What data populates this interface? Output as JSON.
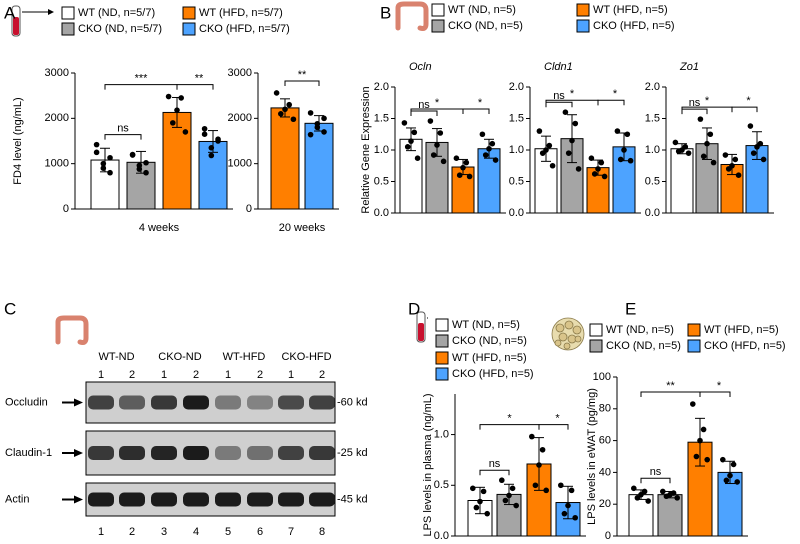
{
  "panels": [
    "A",
    "B",
    "C",
    "D",
    "E"
  ],
  "chart_data": [
    {
      "type": "bar",
      "ylabel": "FD4 level (ng/mL)",
      "xlabel": "4 weeks",
      "categories": [
        "WT (ND, n=5/7)",
        "CKO (ND, n=5/7)",
        "WT (HFD, n=5/7)",
        "CKO (HFD, n=5/7)"
      ],
      "colors": [
        "#ffffff",
        "#a5a5a5",
        "#ff7f00",
        "#4da3ff"
      ],
      "values": [
        1080,
        1030,
        2130,
        1490
      ],
      "errors": [
        260,
        240,
        330,
        240
      ],
      "points": [
        [
          1420,
          1130,
          1000,
          900,
          800,
          1250
        ],
        [
          1190,
          1020,
          960,
          880,
          800,
          1200
        ],
        [
          2480,
          2450,
          2180,
          1900,
          1700
        ],
        [
          1770,
          1540,
          1350,
          1180,
          1500,
          1650
        ]
      ],
      "annotations": [
        "ns",
        "***",
        "**"
      ],
      "ylim": [
        0,
        3000
      ],
      "yticks": [
        0,
        1000,
        2000,
        3000
      ]
    },
    {
      "type": "bar",
      "xlabel": "20 weeks",
      "colors": [
        "#ff7f00",
        "#4da3ff"
      ],
      "values": [
        2230,
        1890
      ],
      "errors": [
        200,
        170
      ],
      "points": [
        [
          2560,
          2300,
          2200,
          2100,
          1980
        ],
        [
          2120,
          2000,
          1880,
          1800,
          1700,
          1640
        ]
      ],
      "annotations": [
        "**"
      ],
      "ylim": [
        0,
        3000
      ],
      "yticks": [
        0,
        1000,
        2000,
        3000
      ]
    },
    {
      "type": "bar",
      "title": "Ocln",
      "ylabel": "Relative Gene Expression",
      "categories": [
        "WT (ND, n=5)",
        "CKO (ND, n=5)",
        "WT (HFD, n=5)",
        "CKO (HFD, n=5)"
      ],
      "colors": [
        "#ffffff",
        "#a5a5a5",
        "#ff7f00",
        "#4da3ff"
      ],
      "values": [
        1.17,
        1.12,
        0.73,
        1.02
      ],
      "errors": [
        0.18,
        0.22,
        0.12,
        0.15
      ],
      "points": [
        [
          1.43,
          1.28,
          1.14,
          1.05,
          0.87
        ],
        [
          1.46,
          1.27,
          1.08,
          0.92,
          0.82
        ],
        [
          0.87,
          0.8,
          0.72,
          0.6,
          0.58
        ],
        [
          1.25,
          1.1,
          1.02,
          0.92,
          0.84
        ]
      ],
      "annotations": [
        "ns",
        "*",
        "*"
      ],
      "ylim": [
        0,
        2.0
      ],
      "yticks": [
        {
          "value": 0,
          "label": "0.0"
        },
        {
          "value": 0.5,
          "label": "0.5"
        },
        {
          "value": 1.0,
          "label": "1.0"
        },
        {
          "value": 1.5,
          "label": "1.5"
        },
        {
          "value": 2.0,
          "label": "2.0"
        }
      ]
    },
    {
      "type": "bar",
      "title": "Cldn1",
      "colors": [
        "#ffffff",
        "#a5a5a5",
        "#ff7f00",
        "#4da3ff"
      ],
      "values": [
        1.02,
        1.18,
        0.72,
        1.05
      ],
      "errors": [
        0.2,
        0.38,
        0.12,
        0.22
      ],
      "points": [
        [
          1.3,
          1.07,
          1.0,
          0.95,
          0.75
        ],
        [
          1.6,
          1.42,
          1.15,
          0.95,
          0.7
        ],
        [
          0.87,
          0.8,
          0.7,
          0.62,
          0.58
        ],
        [
          1.3,
          1.25,
          1.0,
          0.85,
          0.83
        ]
      ],
      "annotations": [
        "ns",
        "*",
        "*"
      ],
      "ylim": [
        0,
        2.0
      ],
      "yticks": [
        {
          "value": 0,
          "label": "0.0"
        },
        {
          "value": 0.5,
          "label": "0.5"
        },
        {
          "value": 1.0,
          "label": "1.0"
        },
        {
          "value": 1.5,
          "label": "1.5"
        },
        {
          "value": 2.0,
          "label": "2.0"
        }
      ]
    },
    {
      "type": "bar",
      "title": "Zo1",
      "colors": [
        "#ffffff",
        "#a5a5a5",
        "#ff7f00",
        "#4da3ff"
      ],
      "values": [
        1.02,
        1.1,
        0.77,
        1.07
      ],
      "errors": [
        0.08,
        0.25,
        0.16,
        0.22
      ],
      "points": [
        [
          1.12,
          1.05,
          1.0,
          0.98,
          0.95
        ],
        [
          1.49,
          1.25,
          1.1,
          0.9,
          0.8
        ],
        [
          0.92,
          0.85,
          0.75,
          0.7,
          0.6
        ],
        [
          1.38,
          1.1,
          1.05,
          0.95,
          0.85
        ]
      ],
      "annotations": [
        "ns",
        "*",
        "*"
      ],
      "ylim": [
        0,
        2.0
      ],
      "yticks": [
        {
          "value": 0,
          "label": "0.0"
        },
        {
          "value": 0.5,
          "label": "0.5"
        },
        {
          "value": 1.0,
          "label": "1.0"
        },
        {
          "value": 1.5,
          "label": "1.5"
        },
        {
          "value": 2.0,
          "label": "2.0"
        }
      ]
    },
    {
      "type": "bar",
      "ylabel": "LPS levels in plasma (ng/mL)",
      "categories": [
        "WT (ND, n=5)",
        "CKO (ND, n=5)",
        "WT (HFD, n=5)",
        "CKO (HFD, n=5)"
      ],
      "colors": [
        "#ffffff",
        "#a5a5a5",
        "#ff7f00",
        "#4da3ff"
      ],
      "values": [
        0.35,
        0.41,
        0.71,
        0.33
      ],
      "errors": [
        0.13,
        0.1,
        0.26,
        0.16
      ],
      "points": [
        [
          0.47,
          0.44,
          0.34,
          0.28,
          0.22
        ],
        [
          0.55,
          0.47,
          0.4,
          0.35,
          0.3
        ],
        [
          0.98,
          0.85,
          0.7,
          0.5,
          0.45
        ],
        [
          0.5,
          0.45,
          0.3,
          0.22,
          0.18
        ]
      ],
      "annotations": [
        "ns",
        "*",
        "*"
      ],
      "ylim": [
        0,
        1.4
      ],
      "yticks": [
        {
          "value": 0,
          "label": "0.0"
        },
        {
          "value": 0.5,
          "label": "0.5"
        },
        {
          "value": 1.0,
          "label": "1.0"
        }
      ]
    },
    {
      "type": "bar",
      "ylabel": "LPS levels in eWAT (pg/mg)",
      "categories": [
        "WT (ND, n=5)",
        "CKO (ND, n=5)",
        "WT (HFD, n=5)",
        "CKO (HFD, n=5)"
      ],
      "colors": [
        "#ffffff",
        "#a5a5a5",
        "#ff7f00",
        "#4da3ff"
      ],
      "values": [
        26,
        26,
        59,
        40
      ],
      "errors": [
        3,
        2,
        15,
        7
      ],
      "points": [
        [
          30,
          28,
          26,
          24,
          22
        ],
        [
          28,
          27,
          26,
          25,
          24
        ],
        [
          83,
          67,
          60,
          50,
          48
        ],
        [
          48,
          45,
          38,
          35,
          34
        ]
      ],
      "annotations": [
        "ns",
        "**",
        "*"
      ],
      "ylim": [
        0,
        100
      ],
      "yticks": [
        0,
        20,
        40,
        60,
        80,
        100
      ]
    }
  ],
  "blot": {
    "groups": [
      "WT-ND",
      "CKO-ND",
      "WT-HFD",
      "CKO-HFD"
    ],
    "group_lanes": [
      [
        "1",
        "2"
      ],
      [
        "1",
        "2"
      ],
      [
        "1",
        "2"
      ],
      [
        "1",
        "2"
      ]
    ],
    "lanes": [
      "1",
      "2",
      "3",
      "4",
      "5",
      "6",
      "7",
      "8"
    ],
    "rows": [
      {
        "name": "Occludin",
        "size": "-60 kd"
      },
      {
        "name": "Claudin-1",
        "size": "-25 kd"
      },
      {
        "name": "Actin",
        "size": "-45 kd"
      }
    ]
  }
}
